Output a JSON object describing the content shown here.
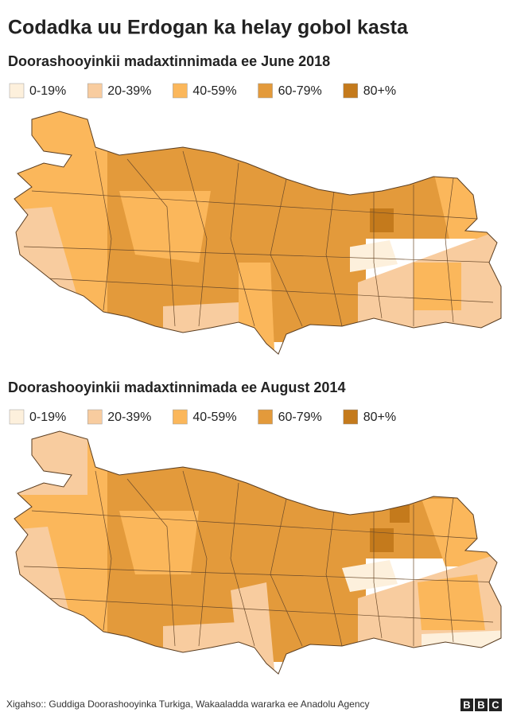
{
  "title": "Codadka uu Erdogan ka helay gobol kasta",
  "maps": [
    {
      "subtitle": "Doorashooyinkii madaxtinnimada ee June 2018",
      "legend": [
        {
          "label": "0-19%",
          "color": "#fdf0dc"
        },
        {
          "label": "20-39%",
          "color": "#f8cc9f"
        },
        {
          "label": "40-59%",
          "color": "#fbb75b"
        },
        {
          "label": "60-79%",
          "color": "#e39a3b"
        },
        {
          "label": "80+%",
          "color": "#c47a1c"
        }
      ]
    },
    {
      "subtitle": "Doorashooyinkii madaxtinnimada ee August 2014",
      "legend": [
        {
          "label": "0-19%",
          "color": "#fdf0dc"
        },
        {
          "label": "20-39%",
          "color": "#f8cc9f"
        },
        {
          "label": "40-59%",
          "color": "#fbb75b"
        },
        {
          "label": "60-79%",
          "color": "#e39a3b"
        },
        {
          "label": "80+%",
          "color": "#c47a1c"
        }
      ]
    }
  ],
  "source": "Xigahso:: Guddiga Doorashooyinka Turkiga, Wakaaladda wararka ee Anadolu Agency",
  "logo": "BBC"
}
